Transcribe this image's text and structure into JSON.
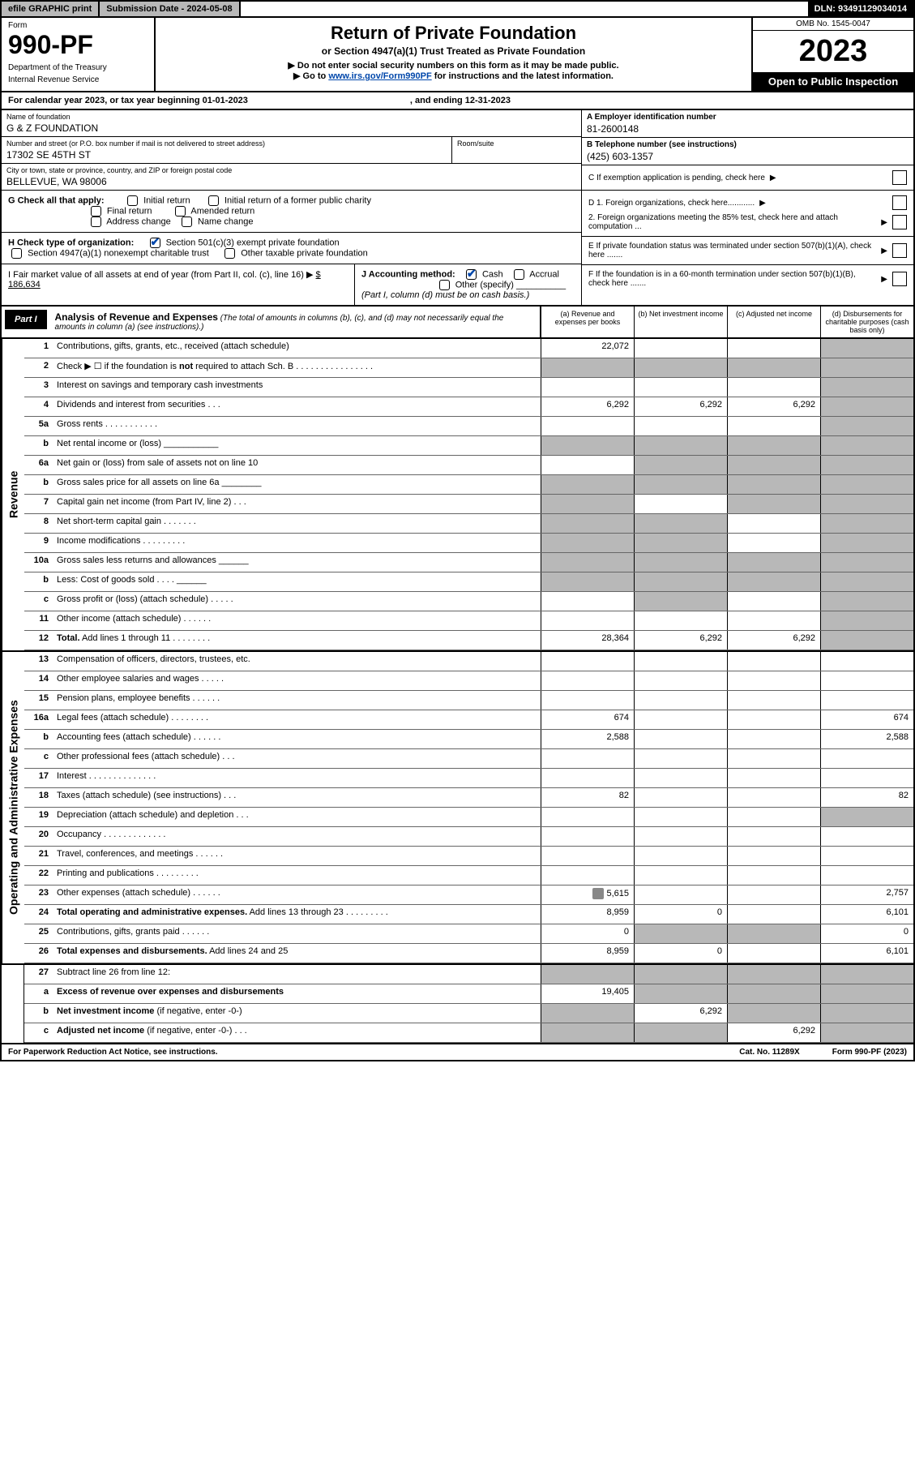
{
  "topbar": {
    "efile": "efile GRAPHIC print",
    "subdate_label": "Submission Date - 2024-05-08",
    "dln": "DLN: 93491129034014"
  },
  "header": {
    "form_label": "Form",
    "form_number": "990-PF",
    "dept": "Department of the Treasury",
    "irs": "Internal Revenue Service",
    "title": "Return of Private Foundation",
    "subtitle": "or Section 4947(a)(1) Trust Treated as Private Foundation",
    "instr1": "▶ Do not enter social security numbers on this form as it may be made public.",
    "instr2_pre": "▶ Go to ",
    "instr2_link": "www.irs.gov/Form990PF",
    "instr2_post": " for instructions and the latest information.",
    "omb": "OMB No. 1545-0047",
    "year": "2023",
    "inspect": "Open to Public Inspection"
  },
  "calyear": {
    "text": "For calendar year 2023, or tax year beginning 01-01-2023",
    "ending": ", and ending 12-31-2023"
  },
  "foundation": {
    "name_label": "Name of foundation",
    "name": "G & Z FOUNDATION",
    "addr_label": "Number and street (or P.O. box number if mail is not delivered to street address)",
    "addr": "17302 SE 45TH ST",
    "room_label": "Room/suite",
    "city_label": "City or town, state or province, country, and ZIP or foreign postal code",
    "city": "BELLEVUE, WA  98006"
  },
  "right": {
    "a_label": "A Employer identification number",
    "a_val": "81-2600148",
    "b_label": "B Telephone number (see instructions)",
    "b_val": "(425) 603-1357",
    "c_label": "C If exemption application is pending, check here",
    "d1": "D 1. Foreign organizations, check here............",
    "d2": "2. Foreign organizations meeting the 85% test, check here and attach computation ...",
    "e_label": "E  If private foundation status was terminated under section 507(b)(1)(A), check here .......",
    "f_label": "F  If the foundation is in a 60-month termination under section 507(b)(1)(B), check here ......."
  },
  "g": {
    "label": "G Check all that apply:",
    "initial": "Initial return",
    "initial_former": "Initial return of a former public charity",
    "final": "Final return",
    "amended": "Amended return",
    "addr_change": "Address change",
    "name_change": "Name change"
  },
  "h": {
    "label": "H Check type of organization:",
    "501c3": "Section 501(c)(3) exempt private foundation",
    "4947": "Section 4947(a)(1) nonexempt charitable trust",
    "other_taxable": "Other taxable private foundation"
  },
  "i": {
    "label": "I Fair market value of all assets at end of year (from Part II, col. (c), line 16)",
    "val": "$  186,634"
  },
  "j": {
    "label": "J Accounting method:",
    "cash": "Cash",
    "accrual": "Accrual",
    "other": "Other (specify)",
    "note": "(Part I, column (d) must be on cash basis.)"
  },
  "part1": {
    "label": "Part I",
    "title": "Analysis of Revenue and Expenses",
    "desc": "(The total of amounts in columns (b), (c), and (d) may not necessarily equal the amounts in column (a) (see instructions).)",
    "col_a": "(a)   Revenue and expenses per books",
    "col_b": "(b)   Net investment income",
    "col_c": "(c)   Adjusted net income",
    "col_d": "(d)   Disbursements for charitable purposes (cash basis only)"
  },
  "side_labels": {
    "rev": "Revenue",
    "exp": "Operating and Administrative Expenses"
  },
  "rows": [
    {
      "n": "1",
      "d": "",
      "a": "22,072",
      "b": "",
      "c": "",
      "shade": [
        "d"
      ]
    },
    {
      "n": "2",
      "d": "",
      "a": "",
      "b": "",
      "c": "",
      "shade": [
        "a",
        "b",
        "c",
        "d"
      ]
    },
    {
      "n": "3",
      "d": "",
      "a": "",
      "b": "",
      "c": "",
      "shade": [
        "d"
      ]
    },
    {
      "n": "4",
      "d": "",
      "a": "6,292",
      "b": "6,292",
      "c": "6,292",
      "shade": [
        "d"
      ]
    },
    {
      "n": "5a",
      "d": "",
      "a": "",
      "b": "",
      "c": "",
      "shade": [
        "d"
      ]
    },
    {
      "n": "b",
      "d": "",
      "a": "",
      "b": "",
      "c": "",
      "shade": [
        "a",
        "b",
        "c",
        "d"
      ]
    },
    {
      "n": "6a",
      "d": "",
      "a": "",
      "b": "",
      "c": "",
      "shade": [
        "b",
        "c",
        "d"
      ]
    },
    {
      "n": "b",
      "d": "",
      "a": "",
      "b": "",
      "c": "",
      "shade": [
        "a",
        "b",
        "c",
        "d"
      ]
    },
    {
      "n": "7",
      "d": "",
      "a": "",
      "b": "",
      "c": "",
      "shade": [
        "a",
        "c",
        "d"
      ]
    },
    {
      "n": "8",
      "d": "",
      "a": "",
      "b": "",
      "c": "",
      "shade": [
        "a",
        "b",
        "d"
      ]
    },
    {
      "n": "9",
      "d": "",
      "a": "",
      "b": "",
      "c": "",
      "shade": [
        "a",
        "b",
        "d"
      ]
    },
    {
      "n": "10a",
      "d": "",
      "a": "",
      "b": "",
      "c": "",
      "shade": [
        "a",
        "b",
        "c",
        "d"
      ]
    },
    {
      "n": "b",
      "d": "",
      "a": "",
      "b": "",
      "c": "",
      "shade": [
        "a",
        "b",
        "c",
        "d"
      ]
    },
    {
      "n": "c",
      "d": "",
      "a": "",
      "b": "",
      "c": "",
      "shade": [
        "b",
        "d"
      ]
    },
    {
      "n": "11",
      "d": "",
      "a": "",
      "b": "",
      "c": "",
      "shade": [
        "d"
      ]
    },
    {
      "n": "12",
      "d": "",
      "a": "28,364",
      "b": "6,292",
      "c": "6,292",
      "bold": true,
      "shade": [
        "d"
      ]
    }
  ],
  "exp_rows": [
    {
      "n": "13",
      "d": "",
      "a": "",
      "b": "",
      "c": ""
    },
    {
      "n": "14",
      "d": "",
      "a": "",
      "b": "",
      "c": ""
    },
    {
      "n": "15",
      "d": "",
      "a": "",
      "b": "",
      "c": ""
    },
    {
      "n": "16a",
      "d": "674",
      "a": "674",
      "b": "",
      "c": ""
    },
    {
      "n": "b",
      "d": "2,588",
      "a": "2,588",
      "b": "",
      "c": ""
    },
    {
      "n": "c",
      "d": "",
      "a": "",
      "b": "",
      "c": ""
    },
    {
      "n": "17",
      "d": "",
      "a": "",
      "b": "",
      "c": ""
    },
    {
      "n": "18",
      "d": "82",
      "a": "82",
      "b": "",
      "c": ""
    },
    {
      "n": "19",
      "d": "",
      "a": "",
      "b": "",
      "c": "",
      "shade": [
        "d"
      ]
    },
    {
      "n": "20",
      "d": "",
      "a": "",
      "b": "",
      "c": ""
    },
    {
      "n": "21",
      "d": "",
      "a": "",
      "b": "",
      "c": ""
    },
    {
      "n": "22",
      "d": "",
      "a": "",
      "b": "",
      "c": ""
    },
    {
      "n": "23",
      "d": "2,757",
      "a": "5,615",
      "b": "",
      "c": "",
      "icon": true
    },
    {
      "n": "24",
      "d": "6,101",
      "a": "8,959",
      "b": "0",
      "c": "",
      "bold": true
    },
    {
      "n": "25",
      "d": "0",
      "a": "0",
      "b": "",
      "c": "",
      "shade": [
        "b",
        "c"
      ]
    },
    {
      "n": "26",
      "d": "6,101",
      "a": "8,959",
      "b": "0",
      "c": "",
      "bold": true
    }
  ],
  "bottom_rows": [
    {
      "n": "27",
      "d": "",
      "a": "",
      "b": "",
      "c": "",
      "shade": [
        "a",
        "b",
        "c",
        "d"
      ]
    },
    {
      "n": "a",
      "d": "",
      "a": "19,405",
      "b": "",
      "c": "",
      "bold": true,
      "shade": [
        "b",
        "c",
        "d"
      ]
    },
    {
      "n": "b",
      "d": "",
      "a": "",
      "b": "6,292",
      "c": "",
      "bold": true,
      "shade": [
        "a",
        "c",
        "d"
      ]
    },
    {
      "n": "c",
      "d": "",
      "a": "",
      "b": "",
      "c": "6,292",
      "bold": true,
      "shade": [
        "a",
        "b",
        "d"
      ]
    }
  ],
  "footer": {
    "left": "For Paperwork Reduction Act Notice, see instructions.",
    "mid": "Cat. No. 11289X",
    "right": "Form 990-PF (2023)"
  }
}
